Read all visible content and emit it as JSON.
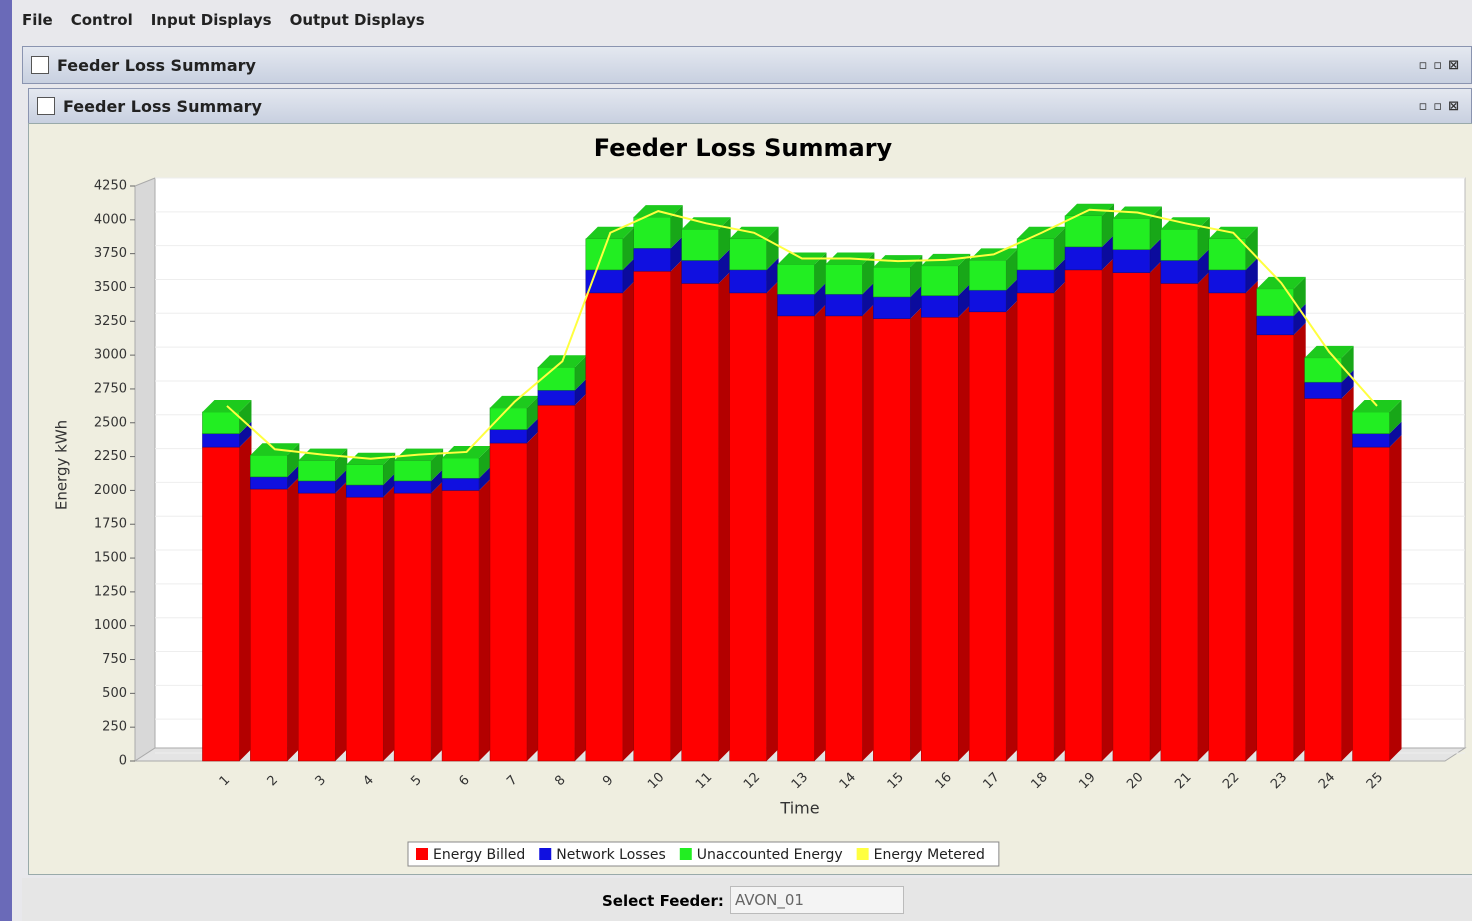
{
  "menu": [
    "File",
    "Control",
    "Input Displays",
    "Output Displays"
  ],
  "windows": [
    {
      "title": "Feeder Loss Summary"
    },
    {
      "title": "Feeder Loss Summary"
    }
  ],
  "chart_data": {
    "type": "bar",
    "stacked": true,
    "title": "Feeder Loss Summary",
    "x_label": "Time",
    "y_label": "Energy kWh",
    "categories": [
      "1",
      "2",
      "3",
      "4",
      "5",
      "6",
      "7",
      "8",
      "9",
      "10",
      "11",
      "12",
      "13",
      "14",
      "15",
      "16",
      "17",
      "18",
      "19",
      "20",
      "21",
      "22",
      "23",
      "24",
      "25"
    ],
    "series": [
      {
        "name": "Energy Billed",
        "color": "#ff0000",
        "values": [
          2320,
          2010,
          1980,
          1950,
          1980,
          2000,
          2350,
          2630,
          3460,
          3620,
          3530,
          3460,
          3290,
          3290,
          3270,
          3280,
          3320,
          3460,
          3630,
          3610,
          3530,
          3460,
          3150,
          2680,
          2320
        ]
      },
      {
        "name": "Network Losses",
        "color": "#1010e0",
        "values": [
          100,
          90,
          90,
          90,
          90,
          90,
          100,
          110,
          170,
          170,
          170,
          170,
          160,
          160,
          160,
          160,
          160,
          170,
          170,
          170,
          170,
          170,
          140,
          120,
          100
        ]
      },
      {
        "name": "Unaccounted Energy",
        "color": "#22ee22",
        "values": [
          160,
          160,
          150,
          150,
          150,
          150,
          160,
          170,
          230,
          230,
          230,
          230,
          220,
          220,
          220,
          220,
          220,
          230,
          230,
          230,
          230,
          230,
          200,
          180,
          160
        ]
      },
      {
        "name": "Energy Metered",
        "color": "#ffff40",
        "type": "line",
        "values": [
          2580,
          2260,
          2220,
          2190,
          2220,
          2240,
          2610,
          2910,
          3860,
          4020,
          3930,
          3860,
          3670,
          3670,
          3650,
          3660,
          3700,
          3860,
          4030,
          4010,
          3930,
          3860,
          3490,
          2980,
          2580
        ]
      }
    ],
    "ylim": [
      0,
      4250
    ],
    "yticks": [
      0,
      250,
      500,
      750,
      1000,
      1250,
      1500,
      1750,
      2000,
      2250,
      2500,
      2750,
      3000,
      3250,
      3500,
      3750,
      4000,
      4250
    ],
    "grid": true,
    "legend": "bottom"
  },
  "footer": {
    "label": "Select Feeder:",
    "value": "AVON_01"
  }
}
